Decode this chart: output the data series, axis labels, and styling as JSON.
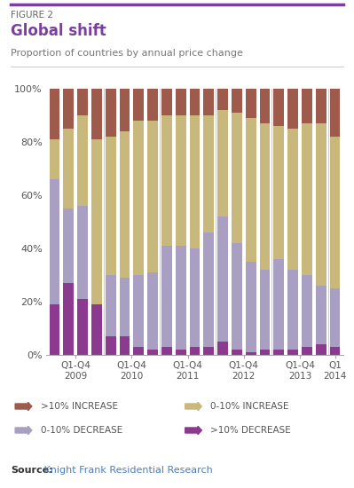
{
  "title_figure": "FIGURE 2",
  "title_main": "Global shift",
  "title_sub": "Proportion of countries by annual price change",
  "source_bold": "Source:",
  "source_rest": " Knight Frank Residential Research",
  "top_line_color": "#7b3fa0",
  "separator_color": "#cccccc",
  "colors_order": [
    "gt10_decrease",
    "zero_10_decrease",
    "zero_10_increase",
    "gt10_increase"
  ],
  "colors": {
    "gt10_increase": "#9e5a4a",
    "zero_10_increase": "#c9b87c",
    "zero_10_decrease": "#a99fc2",
    "gt10_decrease": "#8b3a8f"
  },
  "data_gt10_decrease": [
    19,
    27,
    21,
    19,
    7,
    7,
    3,
    2,
    3,
    2,
    3,
    3,
    5,
    2,
    1,
    2,
    2,
    2,
    3,
    4,
    3
  ],
  "data_zero10_decrease": [
    47,
    28,
    35,
    0,
    23,
    22,
    27,
    29,
    38,
    39,
    37,
    43,
    47,
    40,
    34,
    30,
    34,
    30,
    27,
    22,
    22
  ],
  "data_zero10_increase": [
    15,
    30,
    34,
    62,
    52,
    55,
    58,
    57,
    49,
    49,
    50,
    44,
    40,
    49,
    54,
    55,
    50,
    53,
    57,
    61,
    57
  ],
  "data_gt10_increase": [
    19,
    15,
    10,
    19,
    18,
    16,
    12,
    12,
    10,
    10,
    10,
    10,
    8,
    9,
    11,
    13,
    14,
    15,
    13,
    13,
    18
  ],
  "n_bars": 21,
  "group_tick_positions": [
    1.5,
    5.5,
    9.5,
    13.5,
    17.5,
    20.0
  ],
  "group_tick_labels": [
    "Q1-Q4\n2009",
    "Q1-Q4\n2010",
    "Q1-Q4\n2011",
    "Q1-Q4\n2012",
    "Q1-Q4\n2013",
    "Q1\n2014"
  ],
  "separators": [
    3.5,
    7.5,
    11.5,
    15.5,
    19.5
  ],
  "ytick_values": [
    0,
    20,
    40,
    60,
    80,
    100
  ],
  "ytick_labels": [
    "0%",
    "20%",
    "40%",
    "60%",
    "80%",
    "100%"
  ],
  "legend_colors": [
    "#9e5a4a",
    "#c9b87c",
    "#a99fc2",
    "#8b3a8f"
  ],
  "legend_labels": [
    ">10% INCREASE",
    "0-10% INCREASE",
    "0-10% DECREASE",
    ">10% DECREASE"
  ],
  "bar_width": 0.75,
  "bg_color": "#ffffff",
  "text_color": "#555555",
  "source_color": "#4a7fbf",
  "fig_text_color": "#666666",
  "axis_color": "#aaaaaa"
}
